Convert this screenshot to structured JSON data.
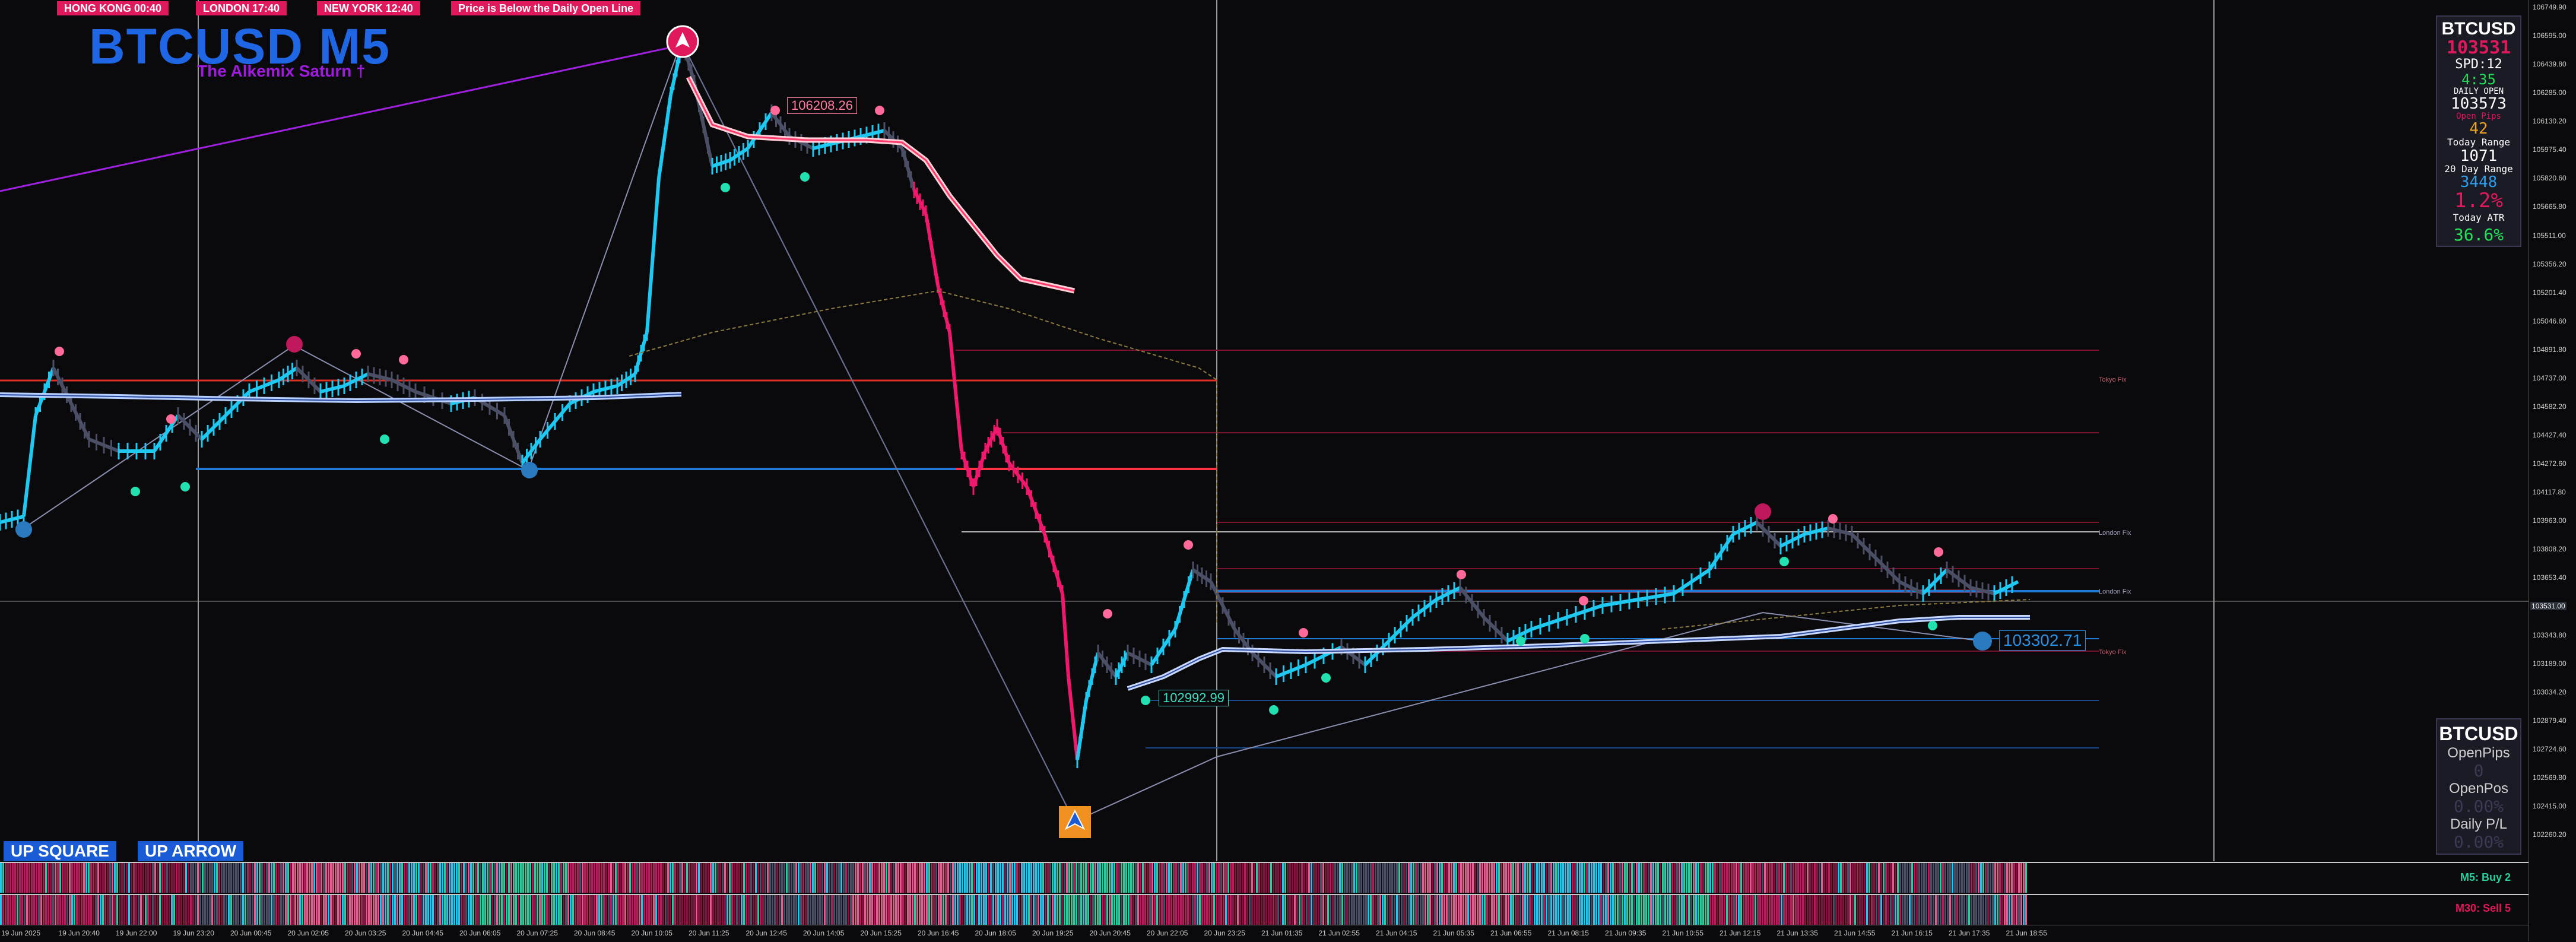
{
  "symbol": "BTCUSD",
  "timeframe": "M5",
  "title": "BTCUSD M5",
  "subtitle": "The Alkemix Saturn †",
  "sessions": [
    {
      "label": "HONG KONG 00:40"
    },
    {
      "label": "LONDON  17:40"
    },
    {
      "label": "NEW YORK 12:40"
    }
  ],
  "alert": "Price is Below the Daily Open Line",
  "signal_buttons": [
    "UP SQUARE",
    "UP ARROW"
  ],
  "price_tags": {
    "high_tag": "106208.26",
    "low_tag": "102992.99",
    "current_tag": "103302.71"
  },
  "line_labels": {
    "tokyo": "Tokyo Fix",
    "london": "London Fix",
    "london2": "London Fix",
    "tokyo2": "Tokyo Fix"
  },
  "stats_panel": {
    "symbol": "BTCUSD",
    "price": "103531",
    "spread": "SPD:12",
    "timer": "4:35",
    "daily_open_label": "DAILY OPEN",
    "daily_open": "103573",
    "open_pips_label": "Open Pips",
    "open_pips": "42",
    "today_range_label": "Today Range",
    "today_range": "1071",
    "day20_range_label": "20 Day Range",
    "day20_range": "3448",
    "percent": "1.2%",
    "today_atr_label": "Today ATR",
    "today_atr": "36.6%"
  },
  "position_panel": {
    "symbol": "BTCUSD",
    "open_pips_label": "OpenPips",
    "open_pips": "0",
    "open_pos_label": "OpenPos",
    "open_pos": "0.00%",
    "daily_pl_label": "Daily P/L",
    "daily_pl": "0.00%"
  },
  "heat_rows": [
    {
      "label": "M5: Buy 2",
      "color": "#25d0a0"
    },
    {
      "label": "M30: Sell 5",
      "color": "#e0185c"
    }
  ],
  "price_axis": [
    "106749.90",
    "106595.00",
    "106439.80",
    "106285.00",
    "106130.20",
    "105975.40",
    "105820.60",
    "105665.80",
    "105511.00",
    "105356.20",
    "105201.40",
    "105046.60",
    "104891.80",
    "104737.00",
    "104582.20",
    "104427.40",
    "104272.60",
    "104117.80",
    "103963.00",
    "103808.20",
    "103653.40",
    "103531.00",
    "103343.80",
    "103189.00",
    "103034.20",
    "102879.40",
    "102724.60",
    "102569.80",
    "102415.00",
    "102260.20"
  ],
  "current_price": "103531.00",
  "time_axis": [
    "19 Jun 2025",
    "19 Jun 20:40",
    "19 Jun 22:00",
    "19 Jun 23:20",
    "20 Jun 00:45",
    "20 Jun 02:05",
    "20 Jun 03:25",
    "20 Jun 04:45",
    "20 Jun 06:05",
    "20 Jun 07:25",
    "20 Jun 08:45",
    "20 Jun 10:05",
    "20 Jun 11:25",
    "20 Jun 12:45",
    "20 Jun 14:05",
    "20 Jun 15:25",
    "20 Jun 16:45",
    "20 Jun 18:05",
    "20 Jun 19:25",
    "20 Jun 20:45",
    "20 Jun 22:05",
    "20 Jun 23:25",
    "21 Jun 01:35",
    "21 Jun 02:55",
    "21 Jun 04:15",
    "21 Jun 05:35",
    "21 Jun 06:55",
    "21 Jun 08:15",
    "21 Jun 09:35",
    "21 Jun 10:55",
    "21 Jun 12:15",
    "21 Jun 13:35",
    "21 Jun 14:55",
    "21 Jun 16:15",
    "21 Jun 17:35",
    "21 Jun 18:55"
  ],
  "colors": {
    "bull": "#1ec8f0",
    "bear": "#f0186c",
    "neutral": "#4a4f66",
    "ma_blue": "#8fb0ff",
    "ma_red": "#ff3a6a",
    "daily_open_line": "#ff3344",
    "support_line": "#1f7ad6",
    "trend_line": "#a020e0",
    "background": "#0a0a0c"
  }
}
